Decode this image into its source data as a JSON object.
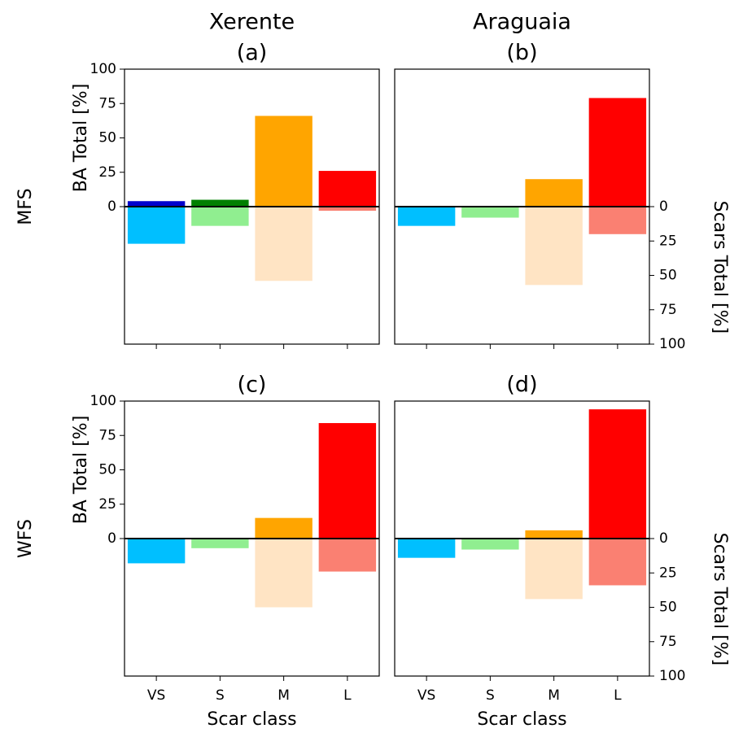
{
  "chart_data": [
    {
      "type": "bar",
      "column_title": "Xerente",
      "title": "(a)",
      "row_label": "MFS",
      "ylabel": "BA Total [%]",
      "categories": [
        null,
        null,
        null,
        null
      ],
      "series": [
        {
          "colors": [
            "#0000cd",
            "#008000",
            "#ffa500",
            "#ff0000"
          ],
          "values": [
            4,
            5,
            66,
            26
          ]
        },
        {
          "axis": "y2",
          "colors": [
            "#00bfff",
            "#90ee90",
            "#ffe4c4",
            "#fa8072"
          ],
          "values": [
            27,
            14,
            54,
            3
          ]
        }
      ],
      "ylim": [
        0,
        100
      ],
      "yticks": [
        0,
        25,
        50,
        75,
        100
      ],
      "y2lim": [
        0,
        100
      ],
      "y2ticks": []
    },
    {
      "type": "bar",
      "column_title": "Araguaia",
      "title": "(b)",
      "y2label": "Scars Total [%]",
      "categories": [
        null,
        null,
        null,
        null
      ],
      "series": [
        {
          "colors": [
            "#0000cd",
            "#008000",
            "#ffa500",
            "#ff0000"
          ],
          "values": [
            0,
            0,
            20,
            79
          ]
        },
        {
          "axis": "y2",
          "colors": [
            "#00bfff",
            "#90ee90",
            "#ffe4c4",
            "#fa8072"
          ],
          "values": [
            14,
            8,
            57,
            20
          ]
        }
      ],
      "ylim": [
        0,
        100
      ],
      "yticks": [],
      "y2lim": [
        0,
        100
      ],
      "y2ticks": [
        0,
        25,
        50,
        75,
        100
      ]
    },
    {
      "type": "bar",
      "title": "(c)",
      "row_label": "WFS",
      "ylabel": "BA Total [%]",
      "xlabel": "Scar class",
      "categories": [
        "VS",
        "S",
        "M",
        "L"
      ],
      "series": [
        {
          "colors": [
            "#0000cd",
            "#008000",
            "#ffa500",
            "#ff0000"
          ],
          "values": [
            0,
            0,
            15,
            84
          ]
        },
        {
          "axis": "y2",
          "colors": [
            "#00bfff",
            "#90ee90",
            "#ffe4c4",
            "#fa8072"
          ],
          "values": [
            18,
            7,
            50,
            24
          ]
        }
      ],
      "ylim": [
        0,
        100
      ],
      "yticks": [
        0,
        25,
        50,
        75,
        100
      ],
      "y2lim": [
        0,
        100
      ],
      "y2ticks": []
    },
    {
      "type": "bar",
      "title": "(d)",
      "y2label": "Scars Total [%]",
      "xlabel": "Scar class",
      "categories": [
        "VS",
        "S",
        "M",
        "L"
      ],
      "series": [
        {
          "colors": [
            "#0000cd",
            "#008000",
            "#ffa500",
            "#ff0000"
          ],
          "values": [
            0,
            0,
            6,
            94
          ]
        },
        {
          "axis": "y2",
          "colors": [
            "#00bfff",
            "#90ee90",
            "#ffe4c4",
            "#fa8072"
          ],
          "values": [
            14,
            8,
            44,
            34
          ]
        }
      ],
      "ylim": [
        0,
        100
      ],
      "yticks": [],
      "y2lim": [
        0,
        100
      ],
      "y2ticks": [
        0,
        25,
        50,
        75,
        100
      ]
    }
  ]
}
